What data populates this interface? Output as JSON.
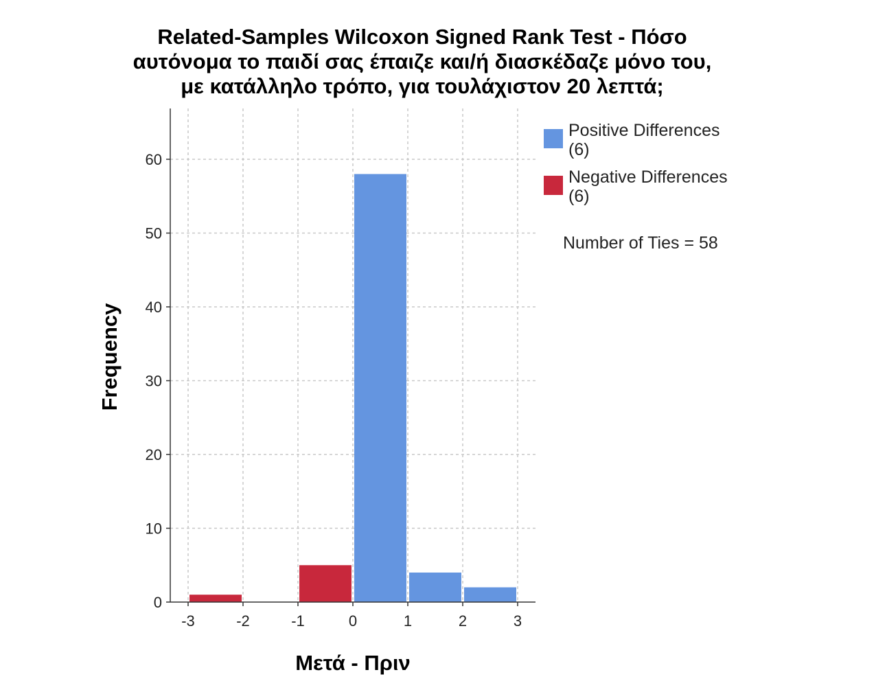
{
  "chart_data": {
    "type": "bar",
    "title_lines": [
      "Related-Samples Wilcoxon Signed Rank Test - Πόσο",
      "αυτόνομα το παιδί σας έπαιζε και/ή διασκέδαζε μόνο του,",
      "με κατάλληλο τρόπο, για τουλάχιστον 20 λεπτά;"
    ],
    "xlabel": "Μετά - Πριν",
    "ylabel": "Frequency",
    "xlim": [
      -3,
      3
    ],
    "ylim": [
      0,
      67
    ],
    "x_ticks": [
      "-3",
      "-2",
      "-1",
      "0",
      "1",
      "2",
      "3"
    ],
    "y_ticks": [
      "0",
      "10",
      "20",
      "30",
      "40",
      "50",
      "60"
    ],
    "grid": true,
    "bins": [
      {
        "start": -3,
        "end": -2,
        "value": 1,
        "series": "negative"
      },
      {
        "start": -2,
        "end": -1,
        "value": 0,
        "series": "negative"
      },
      {
        "start": -1,
        "end": 0,
        "value": 5,
        "series": "negative"
      },
      {
        "start": 0,
        "end": 1,
        "value": 58,
        "series": "positive"
      },
      {
        "start": 1,
        "end": 2,
        "value": 4,
        "series": "positive"
      },
      {
        "start": 2,
        "end": 3,
        "value": 2,
        "series": "positive"
      }
    ],
    "series": [
      {
        "key": "positive",
        "name": "Positive Differences",
        "count_label": "(6)",
        "color": "#6495e0"
      },
      {
        "key": "negative",
        "name": "Negative Differences",
        "count_label": "(6)",
        "color": "#c8283c"
      }
    ],
    "legend_position": "right",
    "annotation": "Number of Ties = 58"
  }
}
